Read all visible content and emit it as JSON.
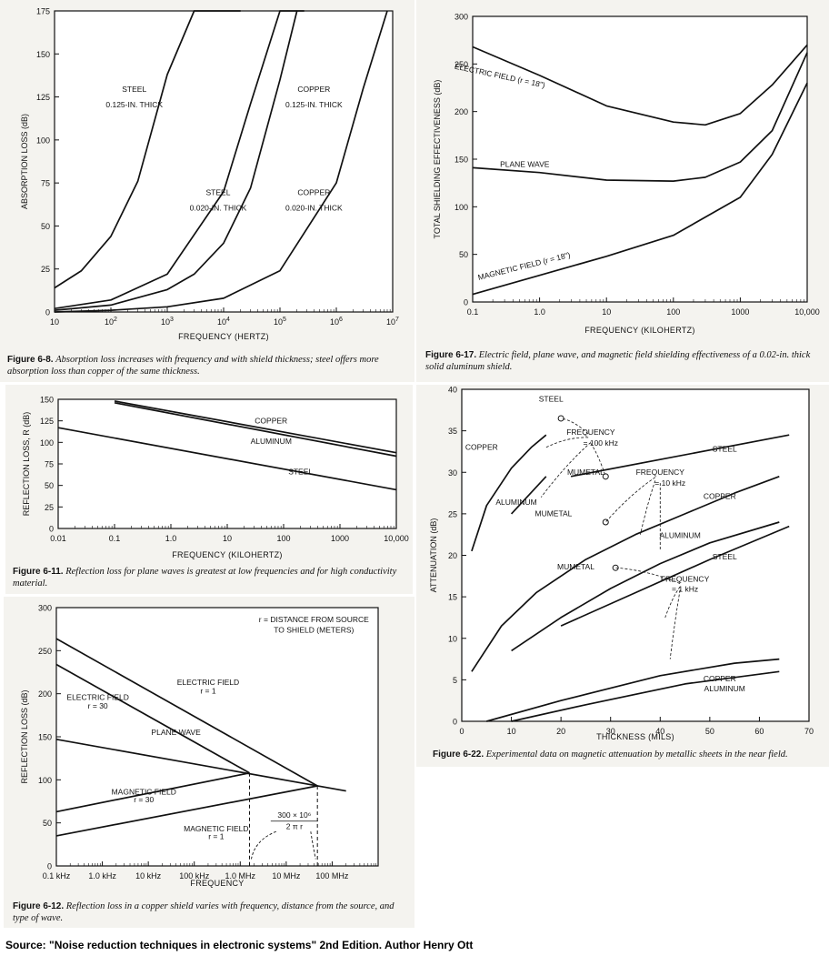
{
  "source_text": "Source: \"Noise reduction techniques in electronic systems\" 2nd Edition. Author Henry Ott",
  "figures": [
    {
      "id": "fig-6-8",
      "label": "Figure 6-8.",
      "caption": "Absorption loss increases with frequency and with shield thickness; steel offers more absorption loss than copper of the same thickness."
    },
    {
      "id": "fig-6-17",
      "label": "Figure 6-17.",
      "caption": "Electric field, plane wave, and magnetic field shielding effectiveness of a 0.02-in. thick solid aluminum shield."
    },
    {
      "id": "fig-6-11",
      "label": "Figure 6-11.",
      "caption": "Reflection loss for plane waves is greatest at low frequencies and for high conductivity material."
    },
    {
      "id": "fig-6-22",
      "label": "Figure 6-22.",
      "caption": "Experimental data on magnetic attenuation by metallic sheets in the near field."
    },
    {
      "id": "fig-6-12",
      "label": "Figure 6-12.",
      "caption": "Reflection loss in a copper shield varies with frequency, distance from the source, and type of wave."
    }
  ],
  "chart_data": [
    {
      "id": "fig-6-8",
      "type": "line",
      "xlabel": "FREQUENCY (HERTZ)",
      "ylabel": "ABSORPTION LOSS (dB)",
      "xscale": "log",
      "xlim": [
        10,
        10000000
      ],
      "ylim": [
        0,
        175
      ],
      "xticks": [
        {
          "v": 10,
          "b": "10"
        },
        {
          "v": 100,
          "b": "10",
          "e": "2"
        },
        {
          "v": 1000,
          "b": "10",
          "e": "3"
        },
        {
          "v": 10000,
          "b": "10",
          "e": "4"
        },
        {
          "v": 100000,
          "b": "10",
          "e": "5"
        },
        {
          "v": 1000000,
          "b": "10",
          "e": "6"
        },
        {
          "v": 10000000,
          "b": "10",
          "e": "7"
        }
      ],
      "yticks": [
        0,
        25,
        50,
        75,
        100,
        125,
        150,
        175
      ],
      "series": [
        {
          "name": "STEEL 0.125-IN. THICK",
          "x": [
            10,
            30,
            100,
            300,
            1000,
            3000,
            10000,
            20000
          ],
          "y": [
            14,
            24,
            44,
            76,
            138,
            175,
            175,
            175
          ]
        },
        {
          "name": "STEEL 0.020-IN. THICK",
          "x": [
            10,
            100,
            1000,
            10000,
            30000,
            100000,
            200000,
            270000
          ],
          "y": [
            2,
            7,
            22,
            70,
            121,
            175,
            175,
            175
          ]
        },
        {
          "name": "COPPER 0.125-IN. THICK",
          "x": [
            10,
            100,
            1000,
            3000,
            10000,
            30000,
            100000,
            200000
          ],
          "y": [
            1,
            4,
            13,
            22,
            40,
            72,
            135,
            175
          ]
        },
        {
          "name": "COPPER 0.020-IN. THICK",
          "x": [
            10,
            100,
            1000,
            10000,
            100000,
            1000000,
            3000000,
            8000000
          ],
          "y": [
            0,
            1,
            3,
            8,
            24,
            75,
            130,
            175
          ]
        }
      ],
      "labels": [
        {
          "text": "STEEL",
          "x": 260,
          "y": 128
        },
        {
          "text": "0.125-IN. THICK",
          "x": 260,
          "y": 119
        },
        {
          "text": "STEEL",
          "x": 8000,
          "y": 68
        },
        {
          "text": "0.020-IN. THICK",
          "x": 8000,
          "y": 59
        },
        {
          "text": "COPPER",
          "x": 400000,
          "y": 128
        },
        {
          "text": "0.125-IN. THICK",
          "x": 400000,
          "y": 119
        },
        {
          "text": "COPPER",
          "x": 400000,
          "y": 68
        },
        {
          "text": "0.020-IN. THICK",
          "x": 400000,
          "y": 59
        }
      ]
    },
    {
      "id": "fig-6-17",
      "type": "line",
      "xlabel": "FREQUENCY (KILOHERTZ)",
      "ylabel": "TOTAL SHIELDING EFFECTIVENESS (dB)",
      "xscale": "log",
      "xlim": [
        0.1,
        10000
      ],
      "ylim": [
        0,
        300
      ],
      "xticks": [
        {
          "v": 0.1,
          "b": "0.1"
        },
        {
          "v": 1,
          "b": "1.0"
        },
        {
          "v": 10,
          "b": "10"
        },
        {
          "v": 100,
          "b": "100"
        },
        {
          "v": 1000,
          "b": "1000"
        },
        {
          "v": 10000,
          "b": "10,000"
        }
      ],
      "yticks": [
        0,
        50,
        100,
        150,
        200,
        250,
        300
      ],
      "series": [
        {
          "name": "ELECTRIC FIELD (r = 18\")",
          "x": [
            0.1,
            1,
            10,
            100,
            300,
            1000,
            3000,
            10000
          ],
          "y": [
            268,
            238,
            206,
            189,
            186,
            198,
            228,
            270
          ]
        },
        {
          "name": "PLANE WAVE",
          "x": [
            0.1,
            1,
            10,
            100,
            300,
            1000,
            3000,
            10000
          ],
          "y": [
            141,
            136,
            128,
            127,
            131,
            147,
            180,
            262
          ]
        },
        {
          "name": "MAGNETIC FIELD (r = 18\")",
          "x": [
            0.1,
            1,
            10,
            100,
            1000,
            3000,
            10000
          ],
          "y": [
            8,
            28,
            48,
            70,
            110,
            155,
            230
          ]
        }
      ],
      "labels": [
        {
          "text": "ELECTRIC FIELD (r = 18\")",
          "x": 0.25,
          "y": 235,
          "rotate": 12
        },
        {
          "text": "PLANE WAVE",
          "x": 0.6,
          "y": 142
        },
        {
          "text": "MAGNETIC FIELD (r = 18\")",
          "x": 0.6,
          "y": 35,
          "rotate": -14
        }
      ]
    },
    {
      "id": "fig-6-11",
      "type": "line",
      "xlabel": "FREQUENCY (KILOHERTZ)",
      "ylabel": "REFLECTION LOSS, R (dB)",
      "xscale": "log",
      "xlim": [
        0.01,
        10000
      ],
      "ylim": [
        0,
        150
      ],
      "xticks": [
        {
          "v": 0.01,
          "b": "0.01"
        },
        {
          "v": 0.1,
          "b": "0.1"
        },
        {
          "v": 1,
          "b": "1.0"
        },
        {
          "v": 10,
          "b": "10"
        },
        {
          "v": 100,
          "b": "100"
        },
        {
          "v": 1000,
          "b": "1000"
        },
        {
          "v": 10000,
          "b": "10,000"
        }
      ],
      "yticks": [
        0,
        25,
        50,
        75,
        100,
        125,
        150
      ],
      "series": [
        {
          "name": "COPPER",
          "x": [
            0.1,
            10000
          ],
          "y": [
            148,
            88
          ]
        },
        {
          "name": "ALUMINUM",
          "x": [
            0.1,
            10000
          ],
          "y": [
            146,
            84
          ]
        },
        {
          "name": "STEEL",
          "x": [
            0.01,
            10000
          ],
          "y": [
            117,
            45
          ]
        }
      ],
      "labels": [
        {
          "text": "COPPER",
          "x": 60,
          "y": 122
        },
        {
          "text": "ALUMINUM",
          "x": 60,
          "y": 98
        },
        {
          "text": "STEEL",
          "x": 200,
          "y": 63
        }
      ]
    },
    {
      "id": "fig-6-22",
      "type": "line",
      "xlabel": "THICKNESS (MILS)",
      "ylabel": "ATTENUATION (dB)",
      "xscale": "linear",
      "xlim": [
        0,
        70
      ],
      "ylim": [
        0,
        40
      ],
      "xticks": [
        0,
        10,
        20,
        30,
        40,
        50,
        60,
        70
      ],
      "yticks": [
        0,
        5,
        10,
        15,
        20,
        25,
        30,
        35,
        40
      ],
      "series": [
        {
          "name": "COPPER (100 kHz)",
          "x": [
            2,
            5,
            10,
            14,
            17
          ],
          "y": [
            20.5,
            26,
            30.5,
            33,
            34.5
          ]
        },
        {
          "name": "ALUMINUM (100 kHz)",
          "x": [
            10,
            17
          ],
          "y": [
            25,
            29.5
          ]
        },
        {
          "name": "STEEL (100 kHz)",
          "x": [
            22,
            66
          ],
          "y": [
            29.5,
            34.5
          ]
        },
        {
          "name": "COPPER (10 kHz)",
          "x": [
            2,
            8,
            15,
            25,
            35,
            45,
            55,
            64
          ],
          "y": [
            6,
            11.5,
            15.5,
            19.5,
            22.5,
            25,
            27.5,
            29.5
          ]
        },
        {
          "name": "ALUMINUM (10 kHz)",
          "x": [
            10,
            20,
            30,
            40,
            50,
            64
          ],
          "y": [
            8.5,
            12.5,
            16,
            19,
            21.5,
            24
          ]
        },
        {
          "name": "STEEL (10 kHz)",
          "x": [
            20,
            35,
            50,
            66
          ],
          "y": [
            11.5,
            15.5,
            19.5,
            23.5
          ]
        },
        {
          "name": "COPPER (1 kHz)",
          "x": [
            5,
            20,
            40,
            55,
            64
          ],
          "y": [
            0,
            2.5,
            5.5,
            7,
            7.5
          ]
        },
        {
          "name": "ALUMINUM (1 kHz)",
          "x": [
            10,
            25,
            45,
            64
          ],
          "y": [
            0,
            2,
            4.5,
            6
          ]
        }
      ],
      "labels": [
        {
          "text": "STEEL",
          "x": 18,
          "y": 38.5
        },
        {
          "text": "COPPER",
          "x": 4,
          "y": 32.7
        },
        {
          "text": "FREQUENCY",
          "x": 26,
          "y": 34.5
        },
        {
          "text": "= 100 kHz",
          "x": 28,
          "y": 33.2
        },
        {
          "text": "STEEL",
          "x": 53,
          "y": 32.5
        },
        {
          "text": "MUMETAL",
          "x": 25,
          "y": 29.7
        },
        {
          "text": "ALUMINUM",
          "x": 11,
          "y": 26.1
        },
        {
          "text": "FREQUENCY",
          "x": 40,
          "y": 29.7
        },
        {
          "text": "= 10 kHz",
          "x": 42,
          "y": 28.4
        },
        {
          "text": "MUMETAL",
          "x": 18.5,
          "y": 24.7
        },
        {
          "text": "COPPER",
          "x": 52,
          "y": 26.8
        },
        {
          "text": "ALUMINUM",
          "x": 44,
          "y": 22.1
        },
        {
          "text": "STEEL",
          "x": 53,
          "y": 19.5
        },
        {
          "text": "MUMETAL",
          "x": 23,
          "y": 18.3
        },
        {
          "text": "FREQUENCY",
          "x": 45,
          "y": 16.8
        },
        {
          "text": "= 1 kHz",
          "x": 45,
          "y": 15.6
        },
        {
          "text": "COPPER",
          "x": 52,
          "y": 4.8
        },
        {
          "text": "ALUMINUM",
          "x": 53,
          "y": 3.6
        }
      ],
      "markers": [
        {
          "x": 20,
          "y": 36.5
        },
        {
          "x": 29,
          "y": 29.5
        },
        {
          "x": 29,
          "y": 24
        },
        {
          "x": 31,
          "y": 18.5
        }
      ]
    },
    {
      "id": "fig-6-12",
      "type": "line",
      "xlabel": "FREQUENCY",
      "ylabel": "REFLECTION LOSS (dB)",
      "xscale": "log",
      "xlim": [
        0.1,
        1000000
      ],
      "ylim": [
        0,
        300
      ],
      "xtick_values": [
        0.1,
        1,
        10,
        100,
        1000,
        10000,
        100000
      ],
      "xticks": [
        "0.1 kHz",
        "1.0 kHz",
        "10 kHz",
        "100 kHz",
        "1.0 MHz",
        "10 MHz",
        "100 MHz"
      ],
      "yticks": [
        0,
        50,
        100,
        150,
        200,
        250,
        300
      ],
      "series": [
        {
          "name": "ELECTRIC FIELD r = 1",
          "x": [
            0.1,
            47740
          ],
          "y": [
            264,
            93
          ]
        },
        {
          "name": "ELECTRIC FIELD r = 30",
          "x": [
            0.1,
            1592
          ],
          "y": [
            234,
            108
          ]
        },
        {
          "name": "PLANE WAVE",
          "x": [
            0.1,
            200000
          ],
          "y": [
            147,
            87
          ]
        },
        {
          "name": "MAGNETIC FIELD r = 30",
          "x": [
            0.1,
            1592
          ],
          "y": [
            63,
            108
          ]
        },
        {
          "name": "MAGNETIC FIELD r = 1",
          "x": [
            0.1,
            47740
          ],
          "y": [
            35,
            93
          ]
        }
      ],
      "annotations": [
        {
          "text": "r = DISTANCE FROM SOURCE",
          "x": 40000,
          "y": 283
        },
        {
          "text": "TO SHIELD (METERS)",
          "x": 40000,
          "y": 271
        },
        {
          "text": "ELECTRIC FIELD",
          "x": 200,
          "y": 210
        },
        {
          "text": "r = 1",
          "x": 200,
          "y": 200
        },
        {
          "text": "ELECTRIC FIELD",
          "x": 0.8,
          "y": 193
        },
        {
          "text": "r = 30",
          "x": 0.8,
          "y": 183
        },
        {
          "text": "PLANE WAVE",
          "x": 40,
          "y": 152
        },
        {
          "text": "MAGNETIC FIELD",
          "x": 8,
          "y": 83
        },
        {
          "text": "r = 30",
          "x": 8,
          "y": 74
        },
        {
          "text": "MAGNETIC FIELD",
          "x": 300,
          "y": 40
        },
        {
          "text": "r = 1",
          "x": 300,
          "y": 31
        }
      ],
      "formula": {
        "numerator": "300 × 10⁶",
        "denominator": "2 π r"
      }
    }
  ]
}
